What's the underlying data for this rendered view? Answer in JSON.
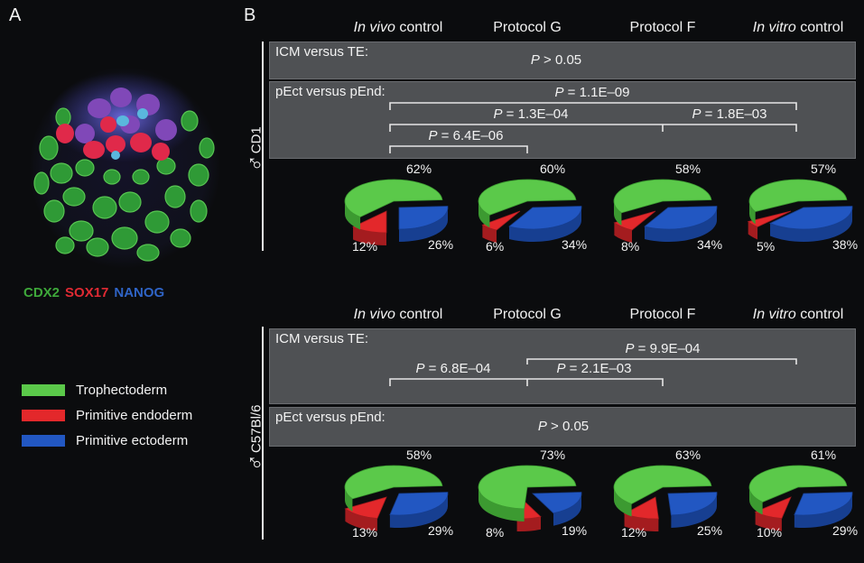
{
  "panel_a": {
    "letter": "A",
    "stains": [
      {
        "label": "CDX2",
        "color": "#3ea83a"
      },
      {
        "label": "SOX17",
        "color": "#e02a33"
      },
      {
        "label": "NANOG",
        "color": "#2f64c6"
      }
    ],
    "legend": [
      {
        "label": "Trophectoderm",
        "color": "#5bc94a"
      },
      {
        "label": "Primitive endoderm",
        "color": "#e3282b"
      },
      {
        "label": "Primitive ectoderm",
        "color": "#2257c2"
      }
    ]
  },
  "panel_b": {
    "letter": "B",
    "columns": [
      {
        "italic": "In vivo",
        "text": " control"
      },
      {
        "italic": "",
        "text": "Protocol G"
      },
      {
        "italic": "",
        "text": "Protocol F"
      },
      {
        "italic": "In vitro",
        "text": " control"
      }
    ],
    "male_symbol": "♂",
    "colors": {
      "trophectoderm": "#5bc94a",
      "endoderm": "#e3282b",
      "ectoderm": "#2257c2"
    },
    "strains": [
      {
        "name": "CD1",
        "icm_te": {
          "label": "ICM versus TE:",
          "pvalues": [
            {
              "p": "P",
              "text": " > 0.05"
            }
          ]
        },
        "pect_pend": {
          "label": "pEct versus pEnd:",
          "pvalues": [
            {
              "p": "P",
              "text": " = 1.1E–09"
            },
            {
              "p": "P",
              "text": " = 1.3E–04"
            },
            {
              "p": "P",
              "text": " = 1.8E–03"
            },
            {
              "p": "P",
              "text": " = 6.4E–06"
            }
          ]
        },
        "pies": [
          {
            "green": 62,
            "red": 12,
            "blue": 26,
            "labels": [
              "62%",
              "12%",
              "26%"
            ]
          },
          {
            "green": 60,
            "red": 6,
            "blue": 34,
            "labels": [
              "60%",
              "6%",
              "34%"
            ]
          },
          {
            "green": 58,
            "red": 8,
            "blue": 34,
            "labels": [
              "58%",
              "8%",
              "34%"
            ]
          },
          {
            "green": 57,
            "red": 5,
            "blue": 38,
            "labels": [
              "57%",
              "5%",
              "38%"
            ]
          }
        ]
      },
      {
        "name": "C57Bl/6",
        "icm_te": {
          "label": "ICM versus TE:",
          "pvalues": [
            {
              "p": "P",
              "text": " = 9.9E–04"
            },
            {
              "p": "P",
              "text": " = 6.8E–04"
            },
            {
              "p": "P",
              "text": " = 2.1E–03"
            }
          ]
        },
        "pect_pend": {
          "label": "pEct versus pEnd:",
          "pvalues": [
            {
              "p": "P",
              "text": " > 0.05"
            }
          ]
        },
        "pies": [
          {
            "green": 58,
            "red": 13,
            "blue": 29,
            "labels": [
              "58%",
              "13%",
              "29%"
            ]
          },
          {
            "green": 73,
            "red": 8,
            "blue": 19,
            "labels": [
              "73%",
              "8%",
              "19%"
            ]
          },
          {
            "green": 63,
            "red": 12,
            "blue": 25,
            "labels": [
              "63%",
              "12%",
              "25%"
            ]
          },
          {
            "green": 61,
            "red": 10,
            "blue": 29,
            "labels": [
              "61%",
              "10%",
              "29%"
            ]
          }
        ]
      }
    ]
  },
  "chart_data": [
    {
      "type": "pie",
      "title": "",
      "categories": [
        "Trophectoderm",
        "Primitive endoderm",
        "Primitive ectoderm"
      ],
      "group": "CD1",
      "series": [
        {
          "name": "In vivo control",
          "values": [
            62,
            12,
            26
          ]
        },
        {
          "name": "Protocol G",
          "values": [
            60,
            6,
            34
          ]
        },
        {
          "name": "Protocol F",
          "values": [
            58,
            8,
            34
          ]
        },
        {
          "name": "In vitro control",
          "values": [
            57,
            5,
            38
          ]
        }
      ]
    },
    {
      "type": "pie",
      "title": "",
      "categories": [
        "Trophectoderm",
        "Primitive endoderm",
        "Primitive ectoderm"
      ],
      "group": "C57Bl/6",
      "series": [
        {
          "name": "In vivo control",
          "values": [
            58,
            13,
            29
          ]
        },
        {
          "name": "Protocol G",
          "values": [
            73,
            8,
            19
          ]
        },
        {
          "name": "Protocol F",
          "values": [
            63,
            12,
            25
          ]
        },
        {
          "name": "In vitro control",
          "values": [
            61,
            10,
            29
          ]
        }
      ]
    }
  ]
}
